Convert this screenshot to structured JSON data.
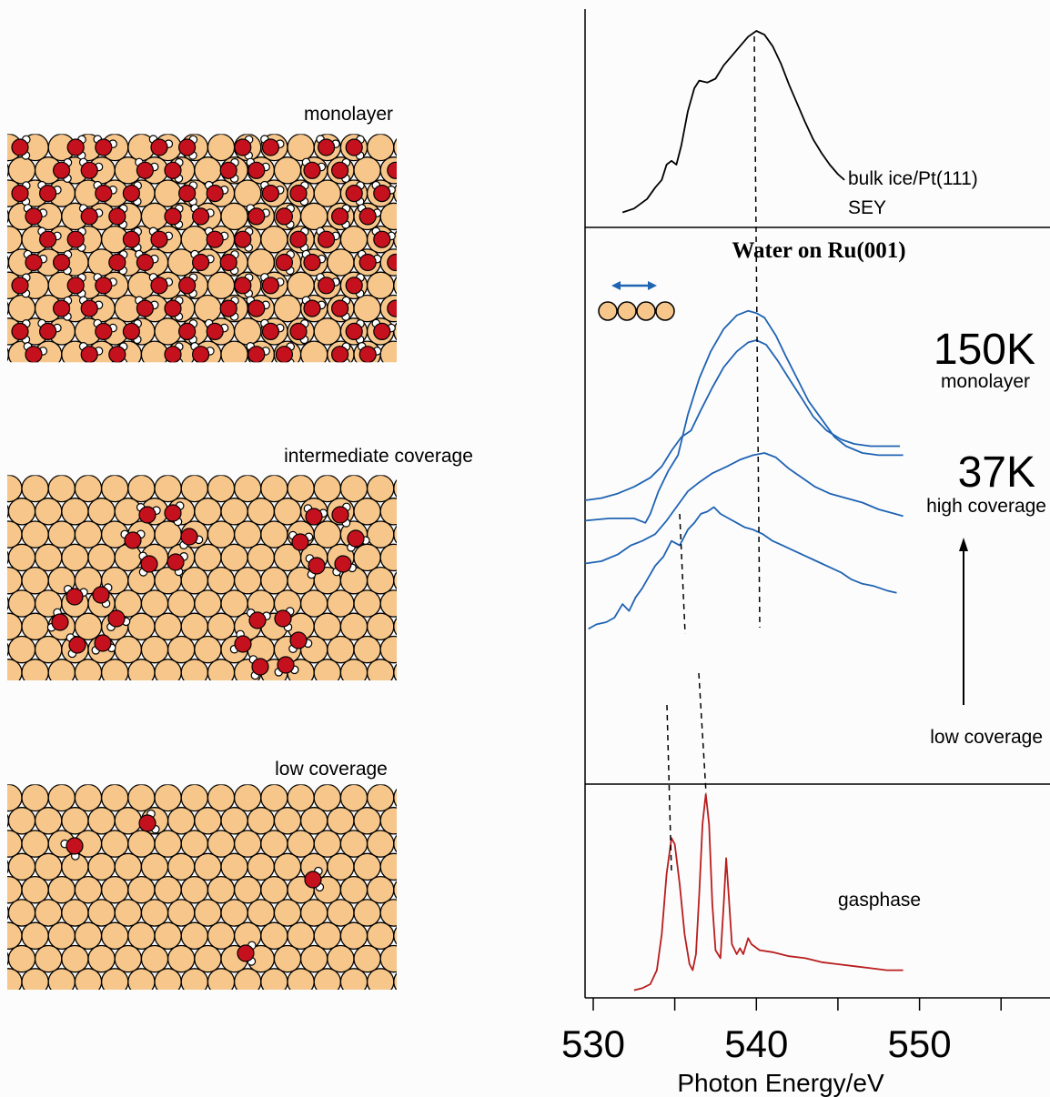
{
  "panels": {
    "monolayer_label": "monolayer",
    "intermediate_label": "intermediate coverage",
    "low_label": "low coverage"
  },
  "chart_data": {
    "type": "line",
    "title": "Water on Ru(001)",
    "xlabel": "Photon Energy/eV",
    "ylabel": "",
    "xlim": [
      529.5,
      558
    ],
    "xticks": [
      530,
      540,
      550
    ],
    "xtick_labels": [
      "530",
      "540",
      "550"
    ],
    "grid": false,
    "annotations": {
      "bulk_label": "bulk ice/Pt(111)",
      "bulk_sub": "SEY",
      "t150": "150K",
      "t150_sub": "monolayer",
      "t37": "37K",
      "t37_sub": "high coverage",
      "low": "low coverage",
      "gas": "gasphase"
    },
    "series": [
      {
        "key": "bulk",
        "color": "#000000",
        "panel": "top",
        "points": [
          [
            531.8,
            0.05
          ],
          [
            532.5,
            0.07
          ],
          [
            533.3,
            0.12
          ],
          [
            533.8,
            0.18
          ],
          [
            534.2,
            0.22
          ],
          [
            534.5,
            0.3
          ],
          [
            534.8,
            0.32
          ],
          [
            535.1,
            0.3
          ],
          [
            535.4,
            0.4
          ],
          [
            535.8,
            0.58
          ],
          [
            536.2,
            0.7
          ],
          [
            536.5,
            0.74
          ],
          [
            537.0,
            0.73
          ],
          [
            537.5,
            0.75
          ],
          [
            538.0,
            0.82
          ],
          [
            538.5,
            0.87
          ],
          [
            539.0,
            0.92
          ],
          [
            539.5,
            0.97
          ],
          [
            540.0,
            1.0
          ],
          [
            540.5,
            0.98
          ],
          [
            541.0,
            0.92
          ],
          [
            541.5,
            0.83
          ],
          [
            542.0,
            0.72
          ],
          [
            542.5,
            0.62
          ],
          [
            543.0,
            0.52
          ],
          [
            543.5,
            0.43
          ],
          [
            544.0,
            0.36
          ],
          [
            544.5,
            0.3
          ],
          [
            545.0,
            0.25
          ],
          [
            545.4,
            0.22
          ]
        ]
      },
      {
        "key": "monolayer",
        "color": "#1f63b3",
        "panel": "middle",
        "points": [
          [
            529.5,
            0.05
          ],
          [
            531.0,
            0.06
          ],
          [
            532.5,
            0.06
          ],
          [
            533.2,
            0.04
          ],
          [
            533.5,
            0.08
          ],
          [
            534.0,
            0.18
          ],
          [
            534.6,
            0.27
          ],
          [
            535.2,
            0.34
          ],
          [
            535.8,
            0.52
          ],
          [
            536.5,
            0.68
          ],
          [
            537.2,
            0.8
          ],
          [
            538.0,
            0.9
          ],
          [
            538.8,
            0.96
          ],
          [
            539.5,
            0.98
          ],
          [
            540.0,
            0.97
          ],
          [
            540.5,
            0.95
          ],
          [
            541.2,
            0.87
          ],
          [
            541.8,
            0.78
          ],
          [
            542.5,
            0.68
          ],
          [
            543.2,
            0.58
          ],
          [
            544.0,
            0.5
          ],
          [
            544.8,
            0.42
          ],
          [
            545.5,
            0.38
          ],
          [
            546.5,
            0.35
          ],
          [
            547.5,
            0.34
          ],
          [
            549.0,
            0.34
          ]
        ]
      },
      {
        "key": "high",
        "color": "#1f63b3",
        "panel": "middle",
        "points": [
          [
            529.5,
            0.02
          ],
          [
            530.5,
            0.03
          ],
          [
            531.5,
            0.05
          ],
          [
            532.5,
            0.08
          ],
          [
            533.5,
            0.12
          ],
          [
            534.2,
            0.17
          ],
          [
            534.8,
            0.24
          ],
          [
            535.4,
            0.3
          ],
          [
            536.0,
            0.33
          ],
          [
            536.6,
            0.42
          ],
          [
            537.3,
            0.52
          ],
          [
            538.0,
            0.61
          ],
          [
            538.8,
            0.68
          ],
          [
            539.5,
            0.72
          ],
          [
            540.0,
            0.73
          ],
          [
            540.6,
            0.71
          ],
          [
            541.3,
            0.64
          ],
          [
            542.0,
            0.56
          ],
          [
            542.8,
            0.47
          ],
          [
            543.5,
            0.39
          ],
          [
            544.3,
            0.33
          ],
          [
            545.2,
            0.29
          ],
          [
            546.0,
            0.27
          ],
          [
            547.0,
            0.26
          ],
          [
            548.0,
            0.26
          ],
          [
            548.8,
            0.26
          ]
        ]
      },
      {
        "key": "medium",
        "color": "#1f63b3",
        "panel": "middle",
        "points": [
          [
            529.5,
            -0.26
          ],
          [
            530.5,
            -0.25
          ],
          [
            531.5,
            -0.22
          ],
          [
            532.3,
            -0.18
          ],
          [
            533.0,
            -0.16
          ],
          [
            533.8,
            -0.13
          ],
          [
            534.5,
            -0.07
          ],
          [
            535.2,
            0.0
          ],
          [
            535.8,
            0.06
          ],
          [
            536.5,
            0.1
          ],
          [
            537.3,
            0.14
          ],
          [
            538.2,
            0.17
          ],
          [
            539.0,
            0.2
          ],
          [
            539.8,
            0.22
          ],
          [
            540.5,
            0.23
          ],
          [
            541.2,
            0.21
          ],
          [
            542.0,
            0.16
          ],
          [
            542.8,
            0.12
          ],
          [
            543.6,
            0.08
          ],
          [
            544.5,
            0.05
          ],
          [
            545.5,
            0.03
          ],
          [
            546.5,
            0.01
          ],
          [
            547.5,
            -0.02
          ],
          [
            548.5,
            -0.04
          ],
          [
            549.0,
            -0.05
          ]
        ]
      },
      {
        "key": "low",
        "color": "#1f63b3",
        "panel": "middle",
        "points": [
          [
            529.7,
            -0.55
          ],
          [
            530.2,
            -0.53
          ],
          [
            530.8,
            -0.52
          ],
          [
            531.3,
            -0.5
          ],
          [
            531.8,
            -0.44
          ],
          [
            532.2,
            -0.47
          ],
          [
            532.6,
            -0.41
          ],
          [
            533.0,
            -0.37
          ],
          [
            533.4,
            -0.32
          ],
          [
            533.8,
            -0.27
          ],
          [
            534.3,
            -0.23
          ],
          [
            534.8,
            -0.16
          ],
          [
            535.3,
            -0.18
          ],
          [
            535.8,
            -0.11
          ],
          [
            536.2,
            -0.08
          ],
          [
            536.6,
            -0.04
          ],
          [
            537.0,
            -0.03
          ],
          [
            537.4,
            -0.01
          ],
          [
            537.8,
            -0.04
          ],
          [
            538.3,
            -0.06
          ],
          [
            538.8,
            -0.08
          ],
          [
            539.3,
            -0.1
          ],
          [
            539.8,
            -0.11
          ],
          [
            540.4,
            -0.13
          ],
          [
            541.0,
            -0.16
          ],
          [
            541.6,
            -0.18
          ],
          [
            542.2,
            -0.2
          ],
          [
            542.8,
            -0.22
          ],
          [
            543.4,
            -0.24
          ],
          [
            544.0,
            -0.26
          ],
          [
            544.6,
            -0.28
          ],
          [
            545.2,
            -0.3
          ],
          [
            545.8,
            -0.33
          ],
          [
            546.5,
            -0.35
          ],
          [
            547.2,
            -0.36
          ],
          [
            548.0,
            -0.38
          ],
          [
            548.6,
            -0.39
          ]
        ]
      },
      {
        "key": "gas",
        "color": "#b81e1e",
        "panel": "bottom",
        "points": [
          [
            532.5,
            0.02
          ],
          [
            533.0,
            0.03
          ],
          [
            533.5,
            0.05
          ],
          [
            533.9,
            0.12
          ],
          [
            534.2,
            0.3
          ],
          [
            534.5,
            0.6
          ],
          [
            534.8,
            0.78
          ],
          [
            535.0,
            0.75
          ],
          [
            535.3,
            0.55
          ],
          [
            535.6,
            0.3
          ],
          [
            535.9,
            0.15
          ],
          [
            536.1,
            0.12
          ],
          [
            536.3,
            0.2
          ],
          [
            536.5,
            0.5
          ],
          [
            536.7,
            0.85
          ],
          [
            536.9,
            1.0
          ],
          [
            537.1,
            0.85
          ],
          [
            537.3,
            0.45
          ],
          [
            537.5,
            0.22
          ],
          [
            537.8,
            0.18
          ],
          [
            538.0,
            0.45
          ],
          [
            538.15,
            0.68
          ],
          [
            538.3,
            0.5
          ],
          [
            538.5,
            0.25
          ],
          [
            538.8,
            0.2
          ],
          [
            539.0,
            0.23
          ],
          [
            539.2,
            0.2
          ],
          [
            539.5,
            0.28
          ],
          [
            539.7,
            0.25
          ],
          [
            540.2,
            0.22
          ],
          [
            541.0,
            0.21
          ],
          [
            542.0,
            0.19
          ],
          [
            543.0,
            0.18
          ],
          [
            544.0,
            0.16
          ],
          [
            545.0,
            0.15
          ],
          [
            546.0,
            0.14
          ],
          [
            547.0,
            0.13
          ],
          [
            548.0,
            0.12
          ],
          [
            549.0,
            0.12
          ]
        ]
      }
    ]
  }
}
